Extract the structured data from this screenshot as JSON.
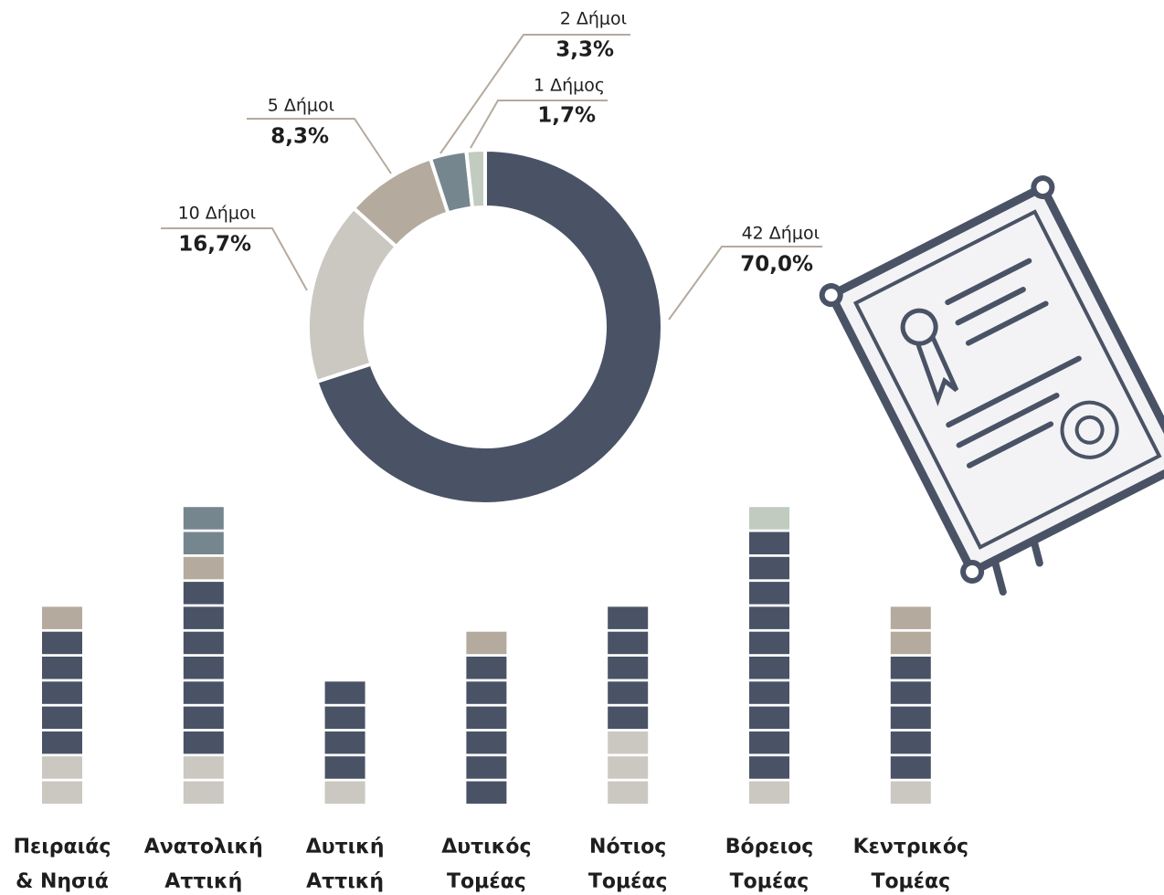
{
  "chart_data": [
    {
      "type": "pie",
      "categories": [
        "42 Δήμοι",
        "10 Δήμοι",
        "5 Δήμοι",
        "2 Δήμοι",
        "1 Δήμος"
      ],
      "values": [
        70.0,
        16.7,
        8.3,
        3.3,
        1.7
      ],
      "value_labels": [
        "70,0%",
        "16,7%",
        "8,3%",
        "3,3%",
        "1,7%"
      ],
      "colors": [
        "#4a5366",
        "#cbc8c2",
        "#b5aa9e",
        "#76868f",
        "#c1cbbf"
      ]
    },
    {
      "type": "bar",
      "stacked": true,
      "categories": [
        [
          "Πειραιάς",
          "& Νησιά"
        ],
        [
          "Ανατολική",
          "Αττική"
        ],
        [
          "Δυτική",
          "Αττική"
        ],
        [
          "Δυτικός",
          "Τομέας"
        ],
        [
          "Νότιος",
          "Τομέας"
        ],
        [
          "Βόρειος",
          "Τομέας"
        ],
        [
          "Κεντρικός",
          "Τομέας"
        ]
      ],
      "series": [
        {
          "color": "#cbc8c2",
          "values": [
            2,
            2,
            1,
            0,
            3,
            1,
            1
          ]
        },
        {
          "color": "#4a5366",
          "values": [
            5,
            7,
            4,
            6,
            5,
            10,
            5
          ]
        },
        {
          "color": "#b5aa9e",
          "values": [
            1,
            1,
            0,
            1,
            0,
            0,
            2
          ]
        },
        {
          "color": "#76868f",
          "values": [
            0,
            2,
            0,
            0,
            0,
            0,
            0
          ]
        },
        {
          "color": "#c1cbbf",
          "values": [
            0,
            0,
            0,
            0,
            0,
            1,
            0
          ]
        }
      ]
    }
  ]
}
